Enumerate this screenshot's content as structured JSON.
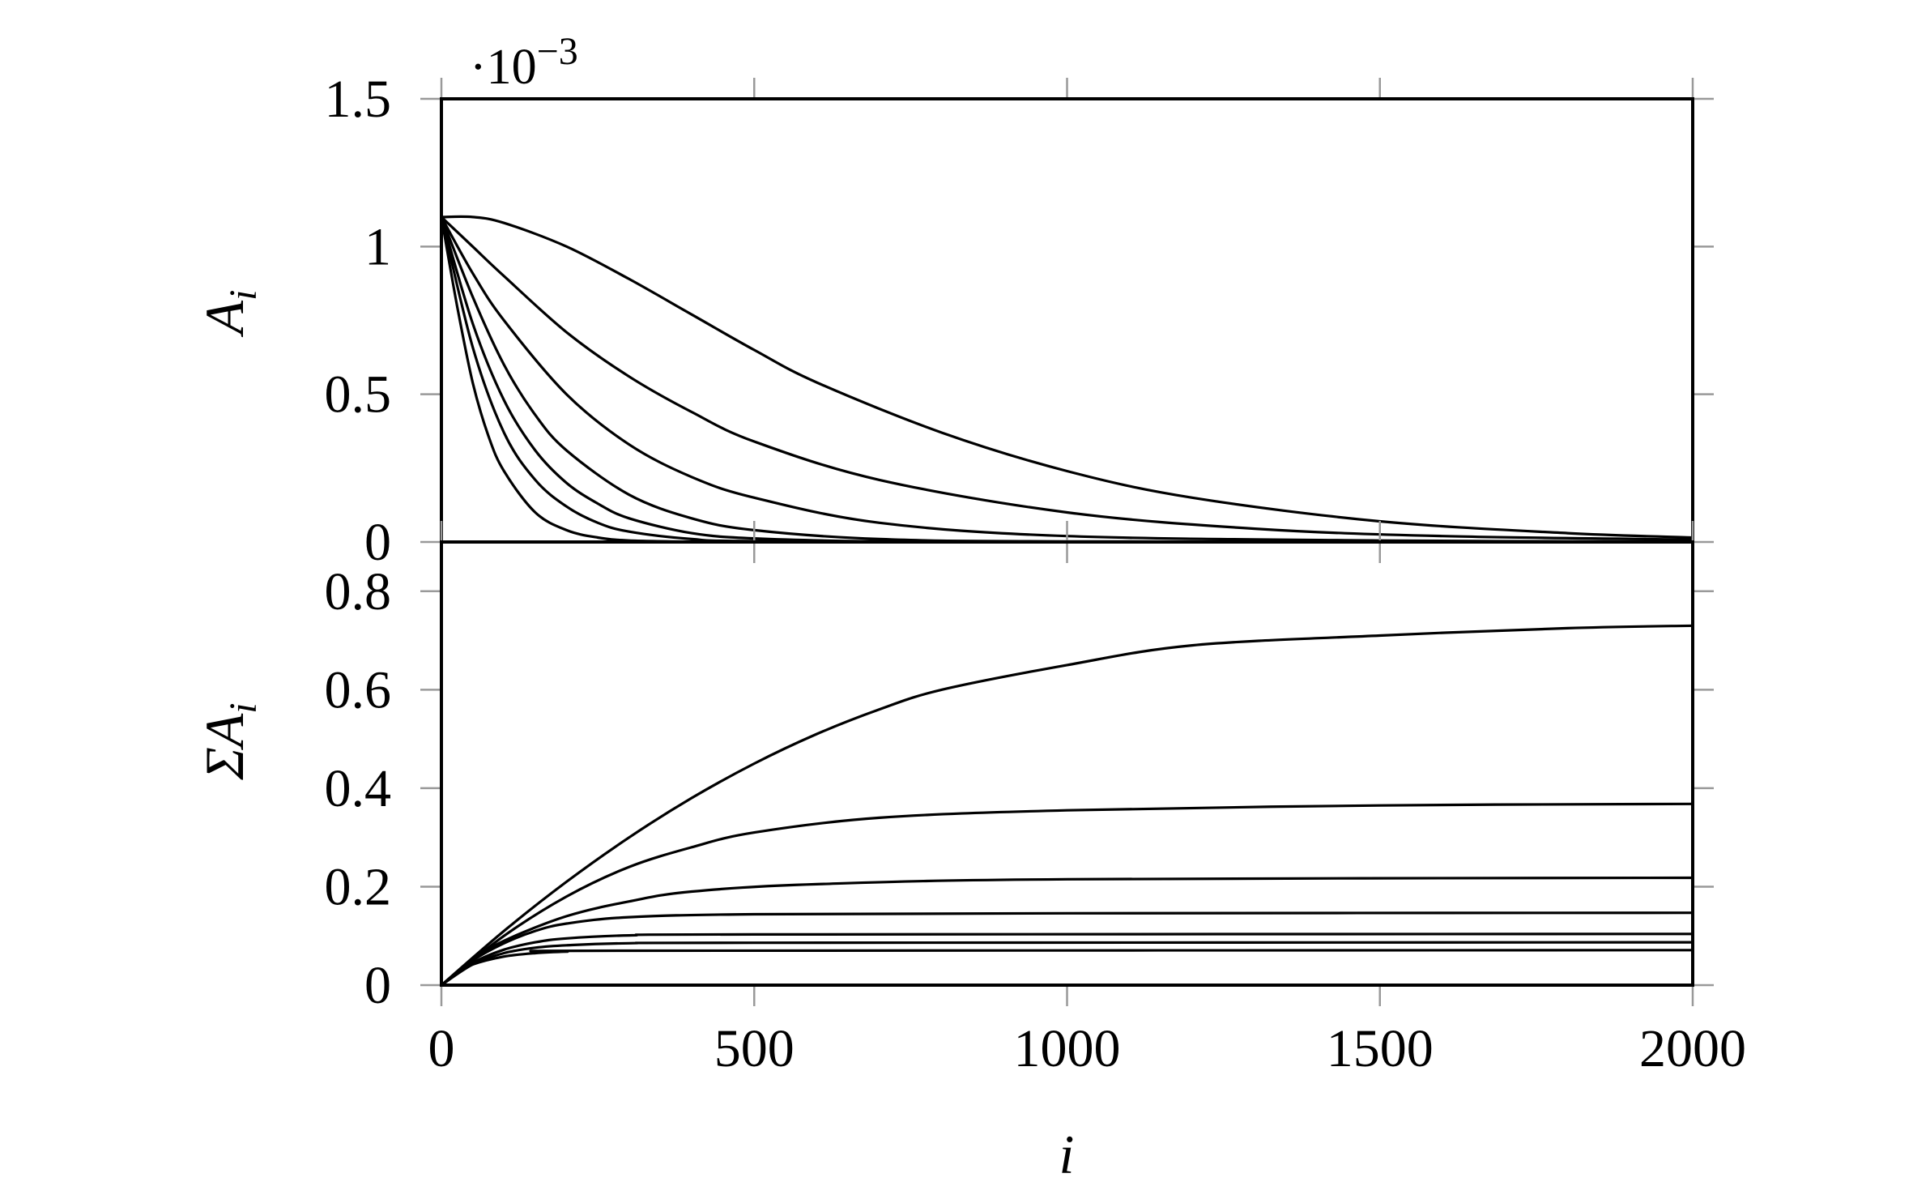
{
  "chart_data": [
    {
      "type": "line",
      "title": "",
      "xlabel": "",
      "ylabel": "A_i",
      "ylabel_parts": {
        "main": "A",
        "sub": "i"
      },
      "y_multiplier": {
        "base": "·10",
        "exp": "−3"
      },
      "xlim": [
        0,
        2000
      ],
      "ylim": [
        0,
        1.5
      ],
      "xticks": [
        0,
        500,
        1000,
        1500,
        2000
      ],
      "yticks": [
        0,
        0.5,
        1,
        1.5
      ],
      "ytick_labels": [
        "0",
        "0.5",
        "1",
        "1.5"
      ],
      "show_xtick_labels": false,
      "grid": false,
      "line_color": "#000000",
      "series": [
        {
          "x": [
            0,
            50,
            100,
            200,
            300,
            400,
            500,
            600,
            800,
            1000,
            1200,
            1500,
            1800,
            2000
          ],
          "y": [
            1.1,
            1.1,
            1.08,
            1.0,
            0.89,
            0.77,
            0.65,
            0.54,
            0.37,
            0.24,
            0.15,
            0.07,
            0.03,
            0.015
          ]
        },
        {
          "x": [
            0,
            50,
            100,
            200,
            300,
            400,
            500,
            700,
            1000,
            1300,
            1600,
            2000
          ],
          "y": [
            1.1,
            1.0,
            0.9,
            0.71,
            0.56,
            0.44,
            0.34,
            0.21,
            0.1,
            0.045,
            0.02,
            0.008
          ]
        },
        {
          "x": [
            0,
            50,
            100,
            200,
            300,
            400,
            500,
            700,
            1000,
            1500,
            2000
          ],
          "y": [
            1.1,
            0.91,
            0.75,
            0.5,
            0.33,
            0.22,
            0.15,
            0.065,
            0.02,
            0.005,
            0.001
          ]
        },
        {
          "x": [
            0,
            50,
            100,
            150,
            200,
            300,
            400,
            500,
            700,
            1000,
            2000
          ],
          "y": [
            1.1,
            0.83,
            0.6,
            0.43,
            0.31,
            0.16,
            0.08,
            0.04,
            0.01,
            0.002,
            0
          ]
        },
        {
          "x": [
            0,
            50,
            100,
            150,
            200,
            250,
            300,
            400,
            500,
            700,
            1000,
            2000
          ],
          "y": [
            1.1,
            0.74,
            0.48,
            0.31,
            0.2,
            0.13,
            0.08,
            0.03,
            0.012,
            0.002,
            0,
            0
          ]
        },
        {
          "x": [
            0,
            50,
            100,
            150,
            200,
            250,
            300,
            400,
            500,
            1000,
            2000
          ],
          "y": [
            1.1,
            0.66,
            0.37,
            0.21,
            0.12,
            0.065,
            0.035,
            0.01,
            0.003,
            0,
            0
          ]
        },
        {
          "x": [
            0,
            25,
            50,
            75,
            100,
            150,
            200,
            250,
            300,
            400,
            500,
            2000
          ],
          "y": [
            1.1,
            0.8,
            0.54,
            0.36,
            0.24,
            0.1,
            0.04,
            0.015,
            0.005,
            0.001,
            0,
            0
          ]
        }
      ]
    },
    {
      "type": "line",
      "title": "",
      "xlabel": "i",
      "ylabel": "ΣA_i",
      "ylabel_parts": {
        "main": "ΣA",
        "sub": "i"
      },
      "xlim": [
        0,
        2000
      ],
      "ylim": [
        0,
        0.9
      ],
      "xticks": [
        0,
        500,
        1000,
        1500,
        2000
      ],
      "xtick_labels": [
        "0",
        "500",
        "1000",
        "1500",
        "2000"
      ],
      "yticks": [
        0,
        0.2,
        0.4,
        0.6,
        0.8
      ],
      "ytick_labels": [
        "0",
        "0.2",
        "0.4",
        "0.6",
        "0.8"
      ],
      "grid": false,
      "line_color": "#000000",
      "series": [
        {
          "x": [
            0,
            100,
            200,
            300,
            400,
            500,
            600,
            700,
            800,
            1000,
            1200,
            1500,
            1800,
            2000
          ],
          "y": [
            0,
            0.11,
            0.21,
            0.3,
            0.38,
            0.45,
            0.51,
            0.56,
            0.6,
            0.65,
            0.69,
            0.71,
            0.725,
            0.73
          ]
        },
        {
          "x": [
            0,
            100,
            200,
            300,
            400,
            500,
            700,
            1000,
            1500,
            2000
          ],
          "y": [
            0,
            0.1,
            0.18,
            0.24,
            0.28,
            0.31,
            0.34,
            0.355,
            0.365,
            0.368
          ]
        },
        {
          "x": [
            0,
            50,
            100,
            200,
            300,
            400,
            600,
            1000,
            2000
          ],
          "y": [
            0,
            0.05,
            0.09,
            0.14,
            0.17,
            0.19,
            0.205,
            0.215,
            0.218
          ]
        },
        {
          "x": [
            0,
            50,
            100,
            150,
            200,
            300,
            500,
            1000,
            2000
          ],
          "y": [
            0,
            0.05,
            0.085,
            0.11,
            0.125,
            0.138,
            0.144,
            0.146,
            0.147
          ]
        },
        {
          "x": [
            0,
            50,
            100,
            150,
            200,
            300,
            500,
            2000
          ],
          "y": [
            0,
            0.045,
            0.072,
            0.087,
            0.095,
            0.101,
            0.103,
            0.104
          ]
        },
        {
          "x": [
            0,
            50,
            100,
            150,
            200,
            300,
            500,
            2000
          ],
          "y": [
            0,
            0.042,
            0.065,
            0.076,
            0.081,
            0.085,
            0.086,
            0.087
          ]
        },
        {
          "x": [
            0,
            25,
            50,
            100,
            150,
            200,
            300,
            2000
          ],
          "y": [
            0,
            0.025,
            0.042,
            0.058,
            0.065,
            0.068,
            0.07,
            0.071
          ]
        }
      ]
    }
  ]
}
